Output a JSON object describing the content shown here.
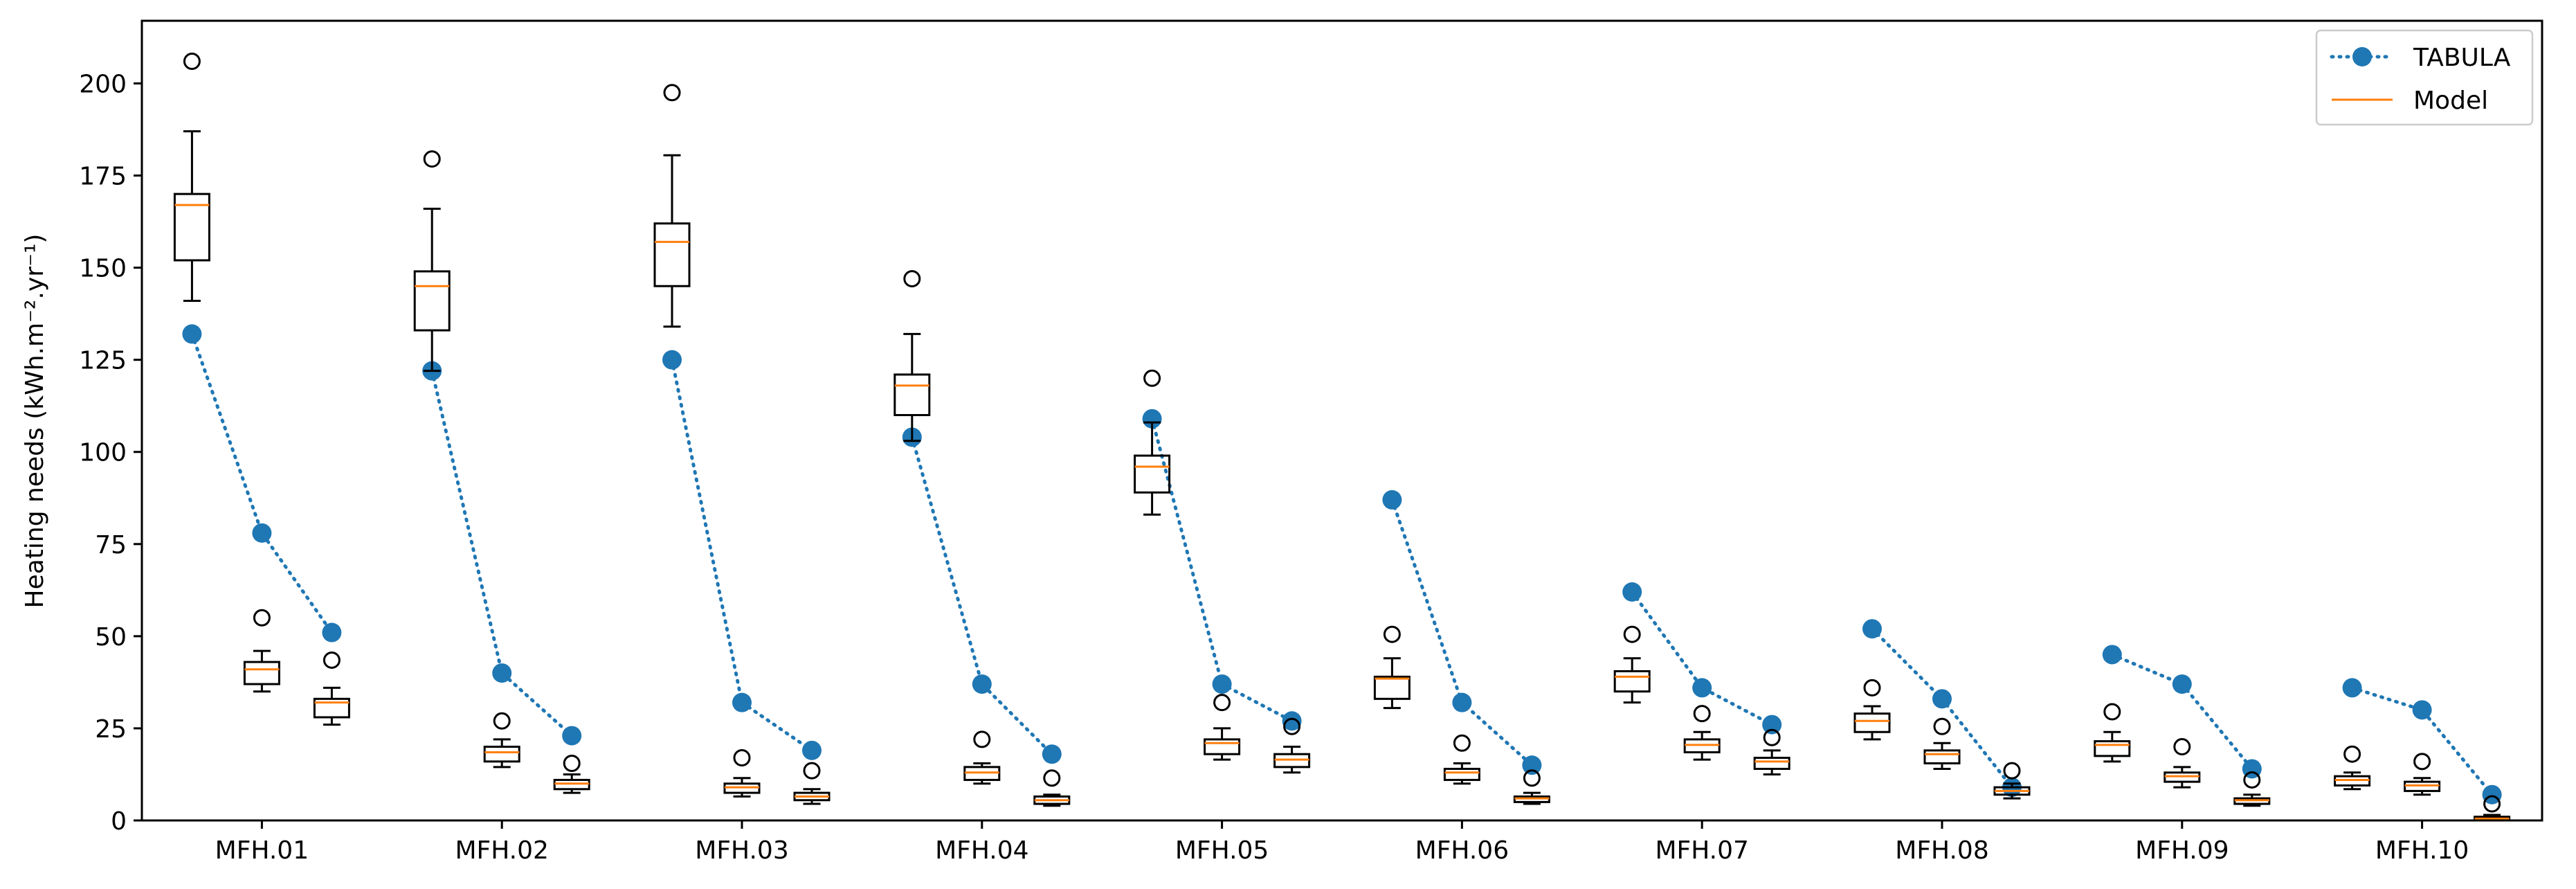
{
  "chart_data": {
    "type": "box",
    "title": "",
    "xlabel": "",
    "ylabel": "Heating needs (kWh.m⁻².yr⁻¹)",
    "ylim": [
      0,
      217
    ],
    "yticks": [
      0,
      25,
      50,
      75,
      100,
      125,
      150,
      175,
      200
    ],
    "categories": [
      "MFH.01",
      "MFH.02",
      "MFH.03",
      "MFH.04",
      "MFH.05",
      "MFH.06",
      "MFH.07",
      "MFH.08",
      "MFH.09",
      "MFH.10"
    ],
    "legend": {
      "position": "top-right",
      "entries": [
        {
          "label": "TABULA",
          "color": "#1f77b4",
          "marker": "circle",
          "line": "dotted"
        },
        {
          "label": "Model",
          "color": "#ff7f0e",
          "marker": "none",
          "line": "solid"
        }
      ]
    },
    "tabula_series": {
      "name": "TABULA",
      "color": "#1f77b4",
      "values": [
        [
          132,
          78,
          51
        ],
        [
          122,
          40,
          23
        ],
        [
          125,
          32,
          19
        ],
        [
          104,
          37,
          18
        ],
        [
          109,
          37,
          27
        ],
        [
          87,
          32,
          15
        ],
        [
          62,
          36,
          26
        ],
        [
          52,
          33,
          9
        ],
        [
          45,
          37,
          14
        ],
        [
          36,
          30,
          7
        ]
      ]
    },
    "model_boxes": {
      "name": "Model",
      "median_color": "#ff7f0e",
      "groups": [
        [
          {
            "whislo": 141,
            "q1": 152,
            "med": 167,
            "q3": 170,
            "whishi": 187,
            "fliers": [
              206
            ]
          },
          {
            "whislo": 35,
            "q1": 37,
            "med": 41,
            "q3": 43,
            "whishi": 46,
            "fliers": [
              55
            ]
          },
          {
            "whislo": 26,
            "q1": 28,
            "med": 32,
            "q3": 33,
            "whishi": 36,
            "fliers": [
              43.5
            ]
          }
        ],
        [
          {
            "whislo": 122,
            "q1": 133,
            "med": 145,
            "q3": 149,
            "whishi": 166,
            "fliers": [
              179.5
            ]
          },
          {
            "whislo": 14.5,
            "q1": 16,
            "med": 18.5,
            "q3": 20,
            "whishi": 22,
            "fliers": [
              27
            ]
          },
          {
            "whislo": 7.5,
            "q1": 8.5,
            "med": 10,
            "q3": 11,
            "whishi": 12.5,
            "fliers": [
              15.5
            ]
          }
        ],
        [
          {
            "whislo": 134,
            "q1": 145,
            "med": 157,
            "q3": 162,
            "whishi": 180.5,
            "fliers": [
              197.5
            ]
          },
          {
            "whislo": 6.5,
            "q1": 7.5,
            "med": 9,
            "q3": 10,
            "whishi": 11.5,
            "fliers": [
              17
            ]
          },
          {
            "whislo": 4.5,
            "q1": 5.5,
            "med": 6.5,
            "q3": 7.5,
            "whishi": 8.5,
            "fliers": [
              13.5
            ]
          }
        ],
        [
          {
            "whislo": 103,
            "q1": 110,
            "med": 118,
            "q3": 121,
            "whishi": 132,
            "fliers": [
              147
            ]
          },
          {
            "whislo": 10,
            "q1": 11,
            "med": 13,
            "q3": 14.5,
            "whishi": 15.5,
            "fliers": [
              22
            ]
          },
          {
            "whislo": 4,
            "q1": 4.5,
            "med": 5.5,
            "q3": 6.5,
            "whishi": 7,
            "fliers": [
              11.5
            ]
          }
        ],
        [
          {
            "whislo": 83,
            "q1": 89,
            "med": 96,
            "q3": 99,
            "whishi": 108,
            "fliers": [
              120
            ]
          },
          {
            "whislo": 16.5,
            "q1": 18,
            "med": 21,
            "q3": 22,
            "whishi": 25,
            "fliers": [
              32
            ]
          },
          {
            "whislo": 13,
            "q1": 14.5,
            "med": 16.5,
            "q3": 18,
            "whishi": 20,
            "fliers": [
              25.5
            ]
          }
        ],
        [
          {
            "whislo": 30.5,
            "q1": 33,
            "med": 38.5,
            "q3": 39,
            "whishi": 44,
            "fliers": [
              50.5
            ]
          },
          {
            "whislo": 10,
            "q1": 11,
            "med": 13,
            "q3": 14,
            "whishi": 15.5,
            "fliers": [
              21
            ]
          },
          {
            "whislo": 4.5,
            "q1": 5,
            "med": 6,
            "q3": 6.5,
            "whishi": 7.5,
            "fliers": [
              11.5
            ]
          }
        ],
        [
          {
            "whislo": 32,
            "q1": 35,
            "med": 39,
            "q3": 40.5,
            "whishi": 44,
            "fliers": [
              50.5
            ]
          },
          {
            "whislo": 16.5,
            "q1": 18.5,
            "med": 20.5,
            "q3": 22,
            "whishi": 24,
            "fliers": [
              29
            ]
          },
          {
            "whislo": 12.5,
            "q1": 14,
            "med": 16,
            "q3": 17,
            "whishi": 19,
            "fliers": [
              22.5
            ]
          }
        ],
        [
          {
            "whislo": 22,
            "q1": 24,
            "med": 27,
            "q3": 29,
            "whishi": 31,
            "fliers": [
              36
            ]
          },
          {
            "whislo": 14,
            "q1": 15.5,
            "med": 18,
            "q3": 19,
            "whishi": 21,
            "fliers": [
              25.5
            ]
          },
          {
            "whislo": 6,
            "q1": 7,
            "med": 8,
            "q3": 9,
            "whishi": 10,
            "fliers": [
              13.5
            ]
          }
        ],
        [
          {
            "whislo": 16,
            "q1": 17.5,
            "med": 20.5,
            "q3": 21.5,
            "whishi": 24,
            "fliers": [
              29.5
            ]
          },
          {
            "whislo": 9,
            "q1": 10.5,
            "med": 12,
            "q3": 13,
            "whishi": 14.5,
            "fliers": [
              20
            ]
          },
          {
            "whislo": 4,
            "q1": 4.5,
            "med": 5.5,
            "q3": 6,
            "whishi": 7,
            "fliers": [
              11
            ]
          }
        ],
        [
          {
            "whislo": 8.5,
            "q1": 9.5,
            "med": 11,
            "q3": 12,
            "whishi": 13,
            "fliers": [
              18
            ]
          },
          {
            "whislo": 7,
            "q1": 8,
            "med": 9.5,
            "q3": 10.5,
            "whishi": 11.5,
            "fliers": [
              16
            ]
          },
          {
            "whislo": 0,
            "q1": 0.2,
            "med": 0.5,
            "q3": 1,
            "whishi": 1.5,
            "fliers": [
              4.5
            ]
          }
        ]
      ]
    }
  }
}
